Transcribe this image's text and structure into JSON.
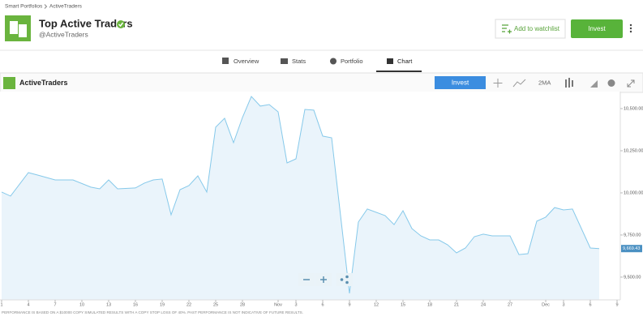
{
  "header": {
    "breadcrumb": [
      "Smart Portfolios",
      "ActiveTraders"
    ],
    "title": "Top Active Traders",
    "handle": "@ActiveTraders",
    "watchlist_button": "Add to watchlist",
    "invest_button": "Invest"
  },
  "tabs": [
    "Overview",
    "Stats",
    "Portfolio",
    "Chart"
  ],
  "toolbar": {
    "name": "ActiveTraders",
    "invest_button": "Invest",
    "indicator": "2MA"
  },
  "chart_data": {
    "type": "line",
    "color": "#86c9ea",
    "fill": "#eaf4fb",
    "x": [
      0,
      1,
      3,
      4,
      6,
      8,
      10,
      11,
      12,
      13,
      15,
      16,
      17,
      18,
      19,
      20,
      21,
      22,
      23,
      24,
      25,
      26,
      27,
      28,
      29,
      30,
      31,
      32,
      33,
      34,
      35,
      36,
      37,
      39,
      40,
      41,
      43,
      44,
      45,
      46,
      47,
      48,
      49,
      50,
      51,
      52,
      53,
      54,
      55,
      57,
      58,
      59,
      60,
      61,
      62,
      63,
      64,
      66,
      67
    ],
    "values": [
      10005,
      9981,
      10120,
      10106,
      10077,
      10077,
      10034,
      10024,
      10077,
      10024,
      10029,
      10058,
      10077,
      10082,
      9870,
      10019,
      10043,
      10101,
      10005,
      10390,
      10443,
      10298,
      10447,
      10572,
      10515,
      10524,
      10481,
      10178,
      10202,
      10495,
      10491,
      10337,
      10327,
      9404,
      9827,
      9904,
      9865,
      9812,
      9894,
      9788,
      9745,
      9721,
      9721,
      9692,
      9644,
      9673,
      9740,
      9755,
      9745,
      9745,
      9634,
      9639,
      9832,
      9856,
      9913,
      9899,
      9904,
      9673,
      9669.43
    ],
    "xlim": [
      0,
      69
    ],
    "xticks": [
      {
        "value": 0,
        "label": "1"
      },
      {
        "value": 3,
        "label": "4"
      },
      {
        "value": 6,
        "label": "7"
      },
      {
        "value": 9,
        "label": "10"
      },
      {
        "value": 12,
        "label": "13"
      },
      {
        "value": 15,
        "label": "16"
      },
      {
        "value": 18,
        "label": "19"
      },
      {
        "value": 21,
        "label": "22"
      },
      {
        "value": 24,
        "label": "25"
      },
      {
        "value": 27,
        "label": "28"
      },
      {
        "value": 31,
        "label": "Nov"
      },
      {
        "value": 33,
        "label": "3"
      },
      {
        "value": 36,
        "label": "6"
      },
      {
        "value": 39,
        "label": "9"
      },
      {
        "value": 42,
        "label": "12"
      },
      {
        "value": 45,
        "label": "15"
      },
      {
        "value": 48,
        "label": "18"
      },
      {
        "value": 51,
        "label": "21"
      },
      {
        "value": 54,
        "label": "24"
      },
      {
        "value": 57,
        "label": "27"
      },
      {
        "value": 61,
        "label": "Dec"
      },
      {
        "value": 63,
        "label": "3"
      },
      {
        "value": 66,
        "label": "6"
      },
      {
        "value": 69,
        "label": "9"
      }
    ],
    "ylim": [
      9365,
      10601
    ],
    "yticks": [
      {
        "value": 9500,
        "label": "9,500.00"
      },
      {
        "value": 9750,
        "label": "9,750.00"
      },
      {
        "value": 10000,
        "label": "10,000.00"
      },
      {
        "value": 10250,
        "label": "10,250.00"
      },
      {
        "value": 10500,
        "label": "10,500.00"
      }
    ],
    "current": {
      "value": 9669.43,
      "label": "9,669.43"
    },
    "grid": false
  },
  "disclaimer": "PERFORMANCE IS BASED ON A $10000 COPY SIMULATED RESULTS WITH A COPY STOP LOSS OF 40%. PAST PERFORMANCE IS NOT INDICATIVE OF FUTURE RESULTS."
}
